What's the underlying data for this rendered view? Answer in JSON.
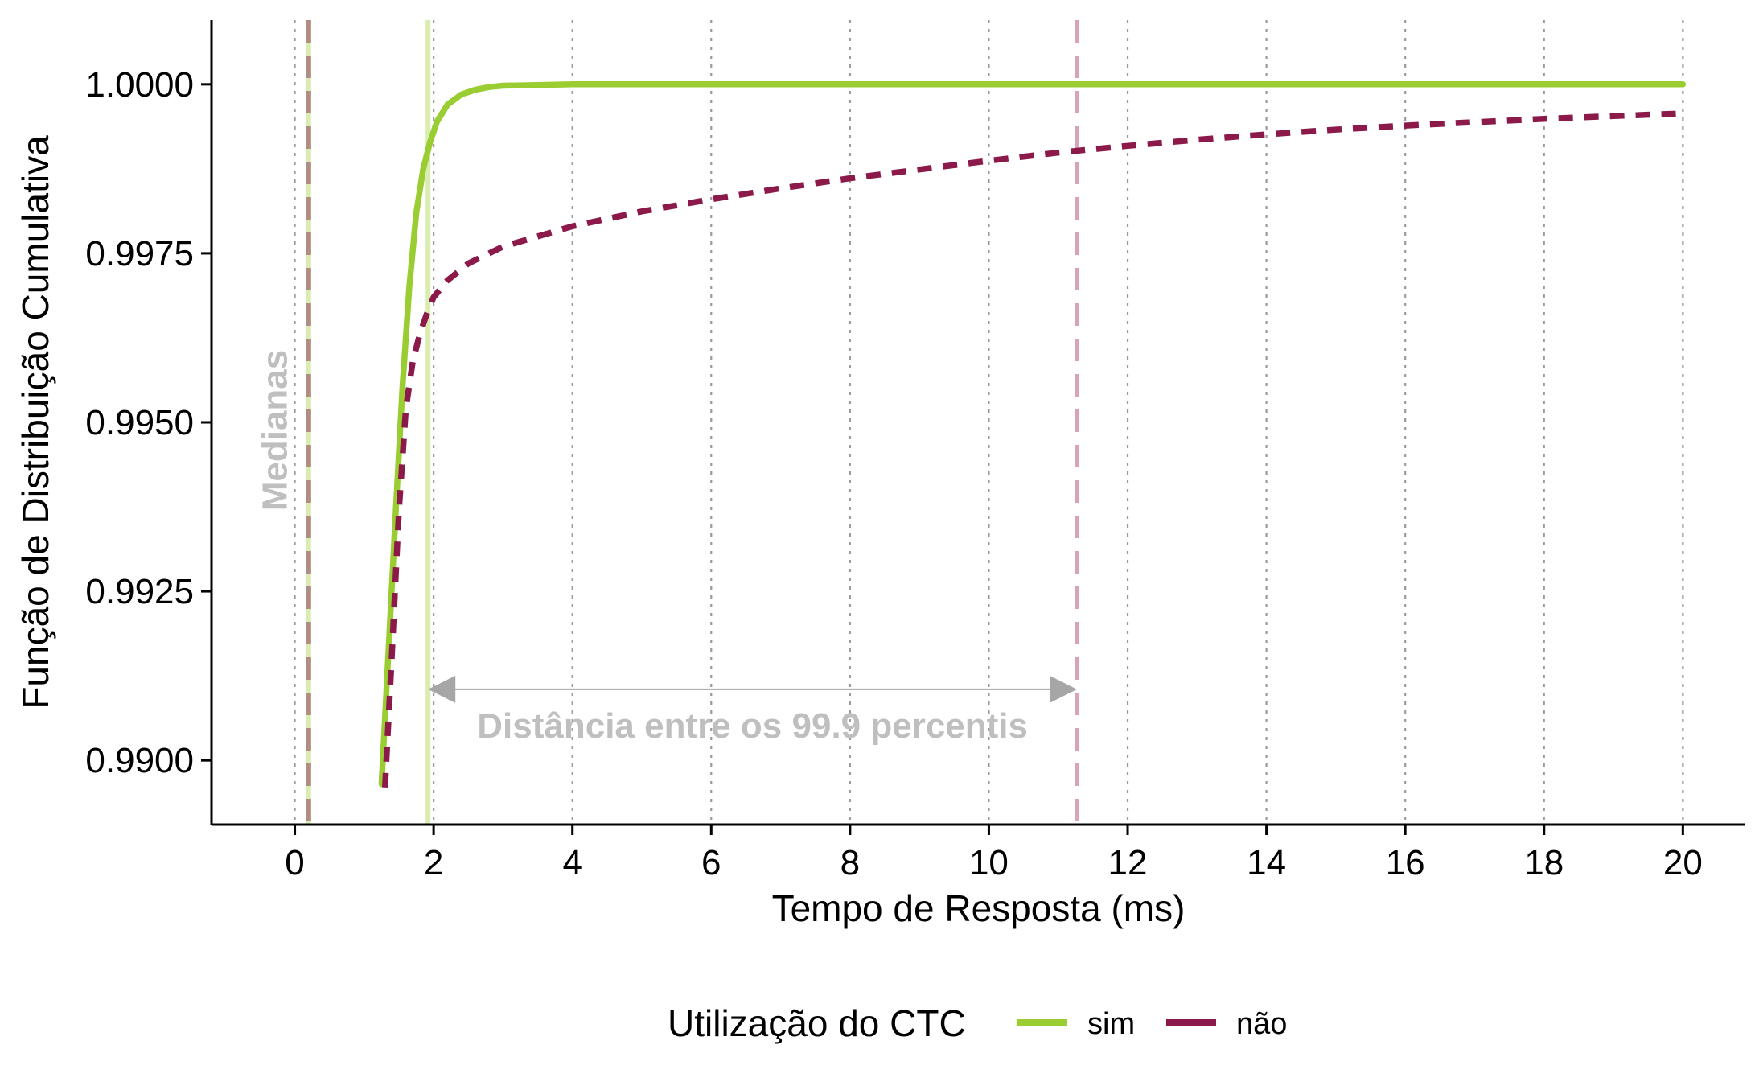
{
  "chart_data": {
    "type": "line",
    "xlabel": "Tempo de Resposta (ms)",
    "ylabel": "Função de Distribuição Cumulativa",
    "xlim": [
      -1.2,
      20.9
    ],
    "ylim": [
      0.98905,
      1.00095
    ],
    "x_ticks": [
      0,
      2,
      4,
      6,
      8,
      10,
      12,
      14,
      16,
      18,
      20
    ],
    "x_tick_labels": [
      "0",
      "2",
      "4",
      "6",
      "8",
      "10",
      "12",
      "14",
      "16",
      "18",
      "20"
    ],
    "y_ticks": [
      0.99,
      0.9925,
      0.995,
      0.9975,
      1.0
    ],
    "y_tick_labels": [
      "0.9900",
      "0.9925",
      "0.9950",
      "0.9975",
      "1.0000"
    ],
    "grid": "vertical-dotted",
    "legend": {
      "title": "Utilização do CTC",
      "placement": "bottom",
      "entries": [
        "sim",
        "não"
      ]
    },
    "series": [
      {
        "name": "sim",
        "color": "#9acd32",
        "line_style": "solid",
        "x": [
          1.25,
          1.35,
          1.45,
          1.55,
          1.65,
          1.75,
          1.85,
          1.95,
          2.05,
          2.2,
          2.4,
          2.6,
          2.8,
          3.0,
          3.5,
          4.0,
          6.0,
          10.0,
          15.0,
          20.0
        ],
        "y": [
          0.98965,
          0.9916,
          0.9936,
          0.9955,
          0.997,
          0.9981,
          0.99875,
          0.99915,
          0.99945,
          0.9997,
          0.99985,
          0.99992,
          0.99996,
          0.99998,
          0.99999,
          1.0,
          1.0,
          1.0,
          1.0,
          1.0
        ]
      },
      {
        "name": "não",
        "color": "#8b1a4a",
        "line_style": "dashed",
        "x": [
          1.3,
          1.4,
          1.5,
          1.6,
          1.7,
          1.8,
          1.9,
          2.0,
          2.2,
          2.5,
          3.0,
          3.5,
          4.0,
          5.0,
          6.0,
          7.0,
          8.0,
          9.0,
          10.0,
          11.0,
          12.0,
          13.0,
          14.0,
          15.0,
          16.0,
          17.0,
          18.0,
          19.0,
          20.0
        ],
        "y": [
          0.9896,
          0.9916,
          0.9937,
          0.9952,
          0.9959,
          0.9963,
          0.9966,
          0.99685,
          0.9971,
          0.99735,
          0.9976,
          0.99775,
          0.9979,
          0.99812,
          0.9983,
          0.99846,
          0.99861,
          0.99874,
          0.99887,
          0.99899,
          0.99909,
          0.99918,
          0.99926,
          0.99933,
          0.99939,
          0.99944,
          0.99949,
          0.99953,
          0.99957
        ]
      }
    ],
    "reference_lines": [
      {
        "x": 0.2,
        "color": "#d9edb1",
        "line_style": "solid",
        "series": "sim"
      },
      {
        "x": 0.2,
        "color": "#b08c82",
        "line_style": "dashed",
        "series": "não"
      },
      {
        "x": 1.92,
        "color": "#d9edb1",
        "line_style": "solid",
        "series": "sim"
      },
      {
        "x": 11.27,
        "color": "#d7a3b9",
        "line_style": "dashed",
        "series": "não"
      }
    ],
    "annotations": {
      "medians_label": "Medianas",
      "distance_label": "Distância entre os 99.9 percentis",
      "arrow": {
        "x_start": 1.92,
        "x_end": 11.27,
        "y": 0.99105,
        "color": "#a6a6a6"
      }
    }
  }
}
